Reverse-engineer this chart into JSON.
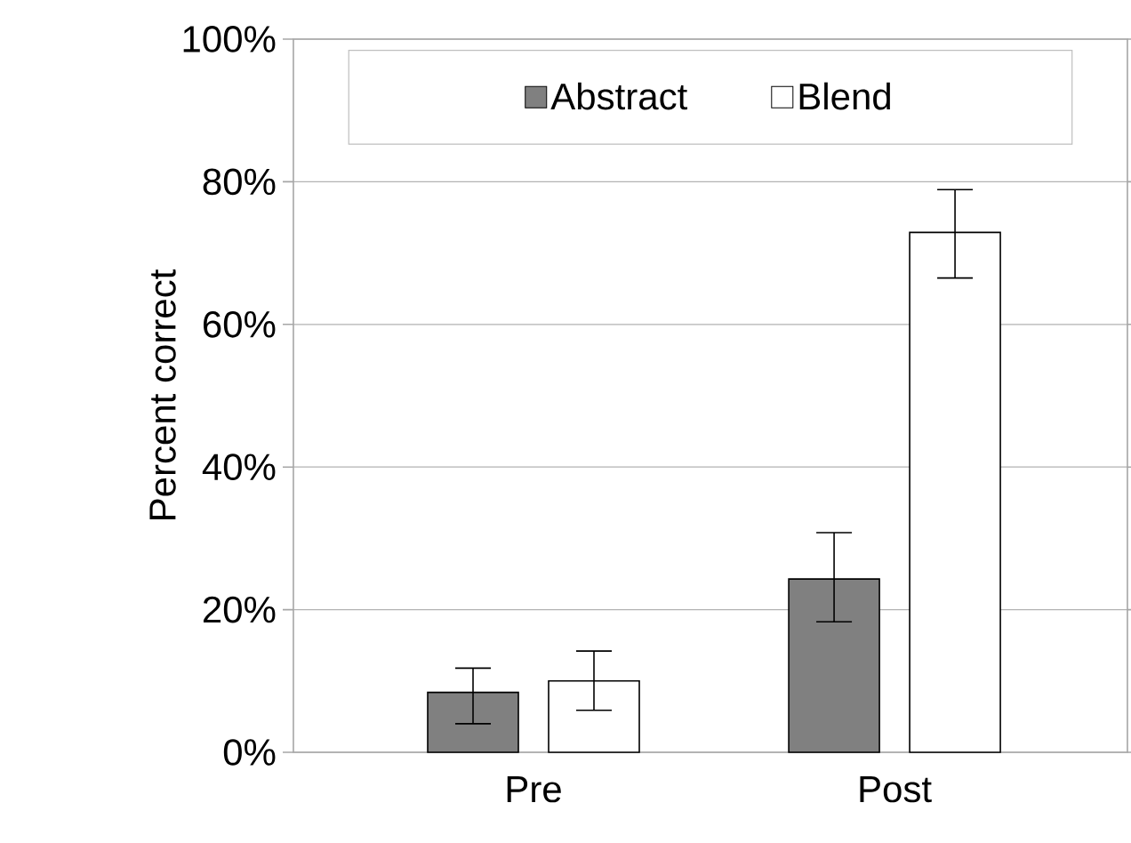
{
  "chart_data": {
    "type": "bar",
    "ylabel": "Percent correct",
    "categories": [
      "Pre",
      "Post"
    ],
    "series": [
      {
        "name": "Abstract",
        "color": "#808080",
        "values": [
          8.4,
          24.3
        ],
        "errors": [
          [
            4.0,
            11.8
          ],
          [
            18.3,
            30.8
          ]
        ]
      },
      {
        "name": "Blend",
        "color": "#ffffff",
        "values": [
          10.0,
          72.9
        ],
        "errors": [
          [
            5.9,
            14.2
          ],
          [
            66.5,
            78.9
          ]
        ]
      }
    ],
    "ylim": [
      0,
      100
    ],
    "yticks": [
      {
        "value": 0,
        "label": "0%"
      },
      {
        "value": 20,
        "label": "20%"
      },
      {
        "value": 40,
        "label": "40%"
      },
      {
        "value": 60,
        "label": "60%"
      },
      {
        "value": 80,
        "label": "80%"
      },
      {
        "value": 100,
        "label": "100%"
      }
    ],
    "grid": "y",
    "legend": "top"
  }
}
